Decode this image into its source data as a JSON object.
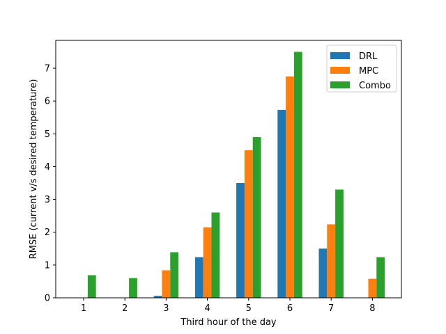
{
  "chart_data": {
    "type": "bar",
    "title": "",
    "xlabel": "Third hour of the day",
    "ylabel": "RMSE (current v/s desired temperature)",
    "categories": [
      "1",
      "2",
      "3",
      "4",
      "5",
      "6",
      "7",
      "8"
    ],
    "ylim": [
      0,
      7.85
    ],
    "yticks": [
      0,
      1,
      2,
      3,
      4,
      5,
      6,
      7
    ],
    "grid": false,
    "legend_position": "top-right",
    "series": [
      {
        "name": "DRL",
        "color": "#1f77b4",
        "values": [
          0,
          0,
          0.06,
          1.24,
          3.5,
          5.73,
          1.5,
          0
        ]
      },
      {
        "name": "MPC",
        "color": "#ff7f0e",
        "values": [
          0,
          0,
          0.84,
          2.15,
          4.5,
          6.75,
          2.24,
          0.58
        ]
      },
      {
        "name": "Combo",
        "color": "#2ca02c",
        "values": [
          0.69,
          0.6,
          1.39,
          2.6,
          4.9,
          7.5,
          3.3,
          1.24
        ]
      }
    ]
  }
}
